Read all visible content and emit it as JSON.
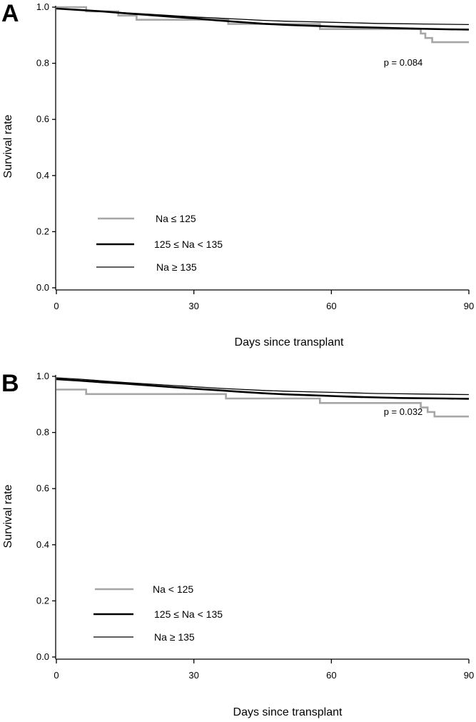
{
  "chart_data": [
    {
      "type": "line",
      "panel_label": "A",
      "xlabel": "Days since transplant",
      "ylabel": "Survival rate",
      "xlim": [
        0,
        90
      ],
      "ylim": [
        0.0,
        1.0
      ],
      "xticks": [
        "0",
        "30",
        "60",
        "90"
      ],
      "yticks": [
        "0.0",
        "0.2",
        "0.4",
        "0.6",
        "0.8",
        "1.0"
      ],
      "annotation": "p = 0.084",
      "legend_position": "lower-left",
      "series": [
        {
          "name": "Na ≤ 125",
          "color": "#a6a6a6",
          "width": "thick",
          "x": [
            0,
            6.5,
            6.5,
            13.5,
            13.5,
            17.5,
            17.5,
            37.5,
            37.5,
            57.5,
            57.5,
            79.5,
            79.5,
            80.5,
            80.5,
            82,
            82,
            90
          ],
          "y": [
            1.0,
            1.0,
            0.985,
            0.985,
            0.97,
            0.97,
            0.955,
            0.955,
            0.94,
            0.94,
            0.922,
            0.922,
            0.906,
            0.906,
            0.89,
            0.89,
            0.875,
            0.875
          ]
        },
        {
          "name": "125 ≤ Na < 135",
          "color": "#000000",
          "width": "thick",
          "x": [
            0,
            5,
            10,
            15,
            20,
            25,
            30,
            35,
            40,
            45,
            50,
            55,
            60,
            65,
            70,
            75,
            80,
            85,
            90
          ],
          "y": [
            0.995,
            0.99,
            0.985,
            0.978,
            0.972,
            0.966,
            0.96,
            0.953,
            0.947,
            0.941,
            0.937,
            0.934,
            0.931,
            0.929,
            0.927,
            0.925,
            0.923,
            0.921,
            0.92
          ]
        },
        {
          "name": "Na ≥ 135",
          "color": "#000000",
          "width": "thin",
          "x": [
            0,
            5,
            10,
            15,
            20,
            25,
            30,
            35,
            40,
            45,
            50,
            55,
            60,
            65,
            70,
            75,
            80,
            85,
            90
          ],
          "y": [
            0.995,
            0.99,
            0.985,
            0.98,
            0.975,
            0.97,
            0.965,
            0.961,
            0.957,
            0.953,
            0.95,
            0.948,
            0.946,
            0.944,
            0.942,
            0.941,
            0.94,
            0.939,
            0.938
          ]
        }
      ]
    },
    {
      "type": "line",
      "panel_label": "B",
      "xlabel": "Days since transplant",
      "ylabel": "Survival rate",
      "xlim": [
        0,
        90
      ],
      "ylim": [
        0.0,
        1.0
      ],
      "xticks": [
        "0",
        "30",
        "60",
        "90"
      ],
      "yticks": [
        "0.0",
        "0.2",
        "0.4",
        "0.6",
        "0.8",
        "1.0"
      ],
      "annotation": "p = 0.032",
      "legend_position": "lower-left",
      "series": [
        {
          "name": "Na < 125",
          "color": "#a6a6a6",
          "width": "thick",
          "x": [
            0,
            6.5,
            6.5,
            37,
            37,
            57.5,
            57.5,
            79.5,
            79.5,
            81,
            81,
            82.5,
            82.5,
            90
          ],
          "y": [
            0.953,
            0.953,
            0.937,
            0.937,
            0.921,
            0.921,
            0.905,
            0.905,
            0.889,
            0.889,
            0.873,
            0.873,
            0.857,
            0.857
          ]
        },
        {
          "name": "125 ≤ Na < 135",
          "color": "#000000",
          "width": "thick",
          "x": [
            0,
            5,
            10,
            15,
            20,
            25,
            30,
            35,
            40,
            45,
            50,
            55,
            60,
            65,
            70,
            75,
            80,
            85,
            90
          ],
          "y": [
            0.99,
            0.985,
            0.979,
            0.974,
            0.968,
            0.962,
            0.956,
            0.951,
            0.945,
            0.94,
            0.936,
            0.933,
            0.93,
            0.927,
            0.925,
            0.923,
            0.922,
            0.921,
            0.92
          ]
        },
        {
          "name": "Na ≥ 135",
          "color": "#000000",
          "width": "thin",
          "x": [
            0,
            5,
            10,
            15,
            20,
            25,
            30,
            35,
            40,
            45,
            50,
            55,
            60,
            65,
            70,
            75,
            80,
            85,
            90
          ],
          "y": [
            0.995,
            0.99,
            0.984,
            0.978,
            0.973,
            0.968,
            0.963,
            0.958,
            0.954,
            0.95,
            0.947,
            0.945,
            0.943,
            0.941,
            0.939,
            0.938,
            0.937,
            0.936,
            0.935
          ]
        }
      ]
    }
  ]
}
